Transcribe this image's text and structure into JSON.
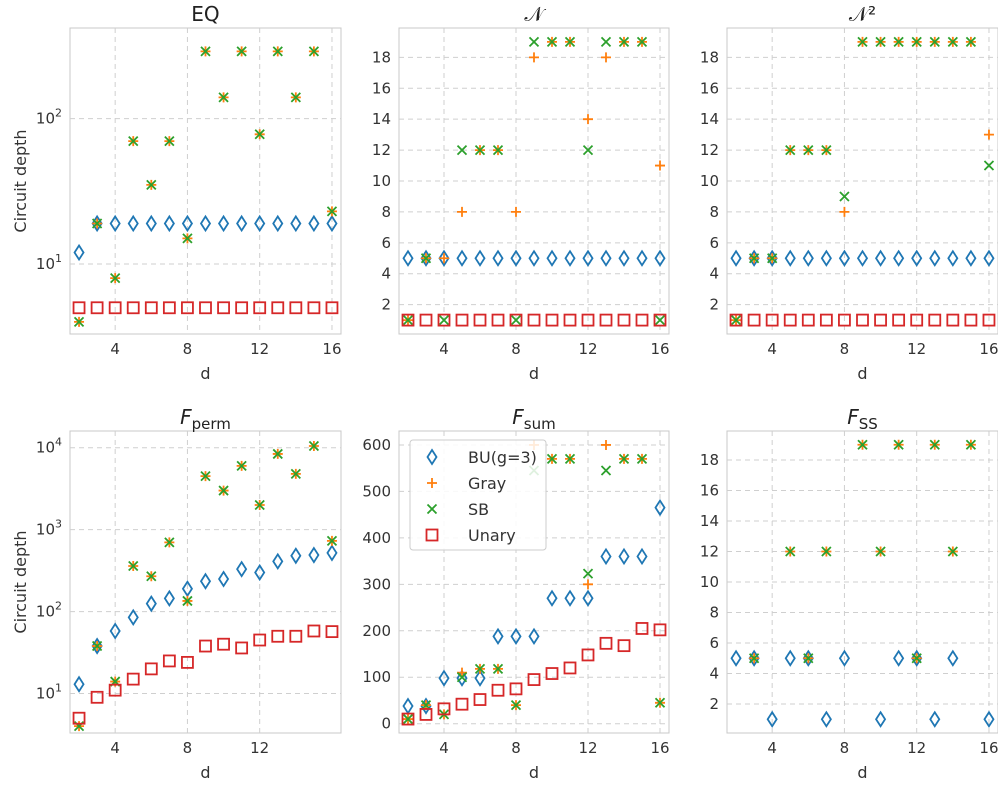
{
  "chart_data": [
    {
      "type": "scatter",
      "title": "EQ",
      "xlabel": "d",
      "ylabel": "Circuit depth",
      "yscale": "log",
      "xlim": [
        1.5,
        16.5
      ],
      "ylim": [
        3.3,
        420
      ],
      "xticks": [
        4,
        8,
        12,
        16
      ],
      "yticks": [
        10,
        100
      ],
      "ytick_labels": [
        "10^1",
        "10^2"
      ],
      "x": [
        2,
        3,
        4,
        5,
        6,
        7,
        8,
        9,
        10,
        11,
        12,
        13,
        14,
        15,
        16
      ],
      "series": [
        {
          "name": "BU(g=3)",
          "values": [
            12,
            19,
            19,
            19,
            19,
            19,
            19,
            19,
            19,
            19,
            19,
            19,
            19,
            19,
            19
          ]
        },
        {
          "name": "Gray",
          "values": [
            4,
            19,
            8,
            70,
            35,
            70,
            15,
            290,
            140,
            290,
            78,
            290,
            140,
            290,
            23
          ]
        },
        {
          "name": "SB",
          "values": [
            4,
            19,
            8,
            70,
            35,
            70,
            15,
            290,
            140,
            290,
            78,
            290,
            140,
            290,
            23
          ]
        },
        {
          "name": "Unary",
          "values": [
            5,
            5,
            5,
            5,
            5,
            5,
            5,
            5,
            5,
            5,
            5,
            5,
            5,
            5,
            5
          ]
        }
      ]
    },
    {
      "type": "scatter",
      "title": "𝒩",
      "xlabel": "d",
      "ylabel": "",
      "yscale": "linear",
      "xlim": [
        1.5,
        16.5
      ],
      "ylim": [
        0.1,
        19.9
      ],
      "xticks": [
        4,
        8,
        12,
        16
      ],
      "yticks": [
        2,
        4,
        6,
        8,
        10,
        12,
        14,
        16,
        18
      ],
      "x": [
        2,
        3,
        4,
        5,
        6,
        7,
        8,
        9,
        10,
        11,
        12,
        13,
        14,
        15,
        16
      ],
      "series": [
        {
          "name": "BU(g=3)",
          "values": [
            5,
            5,
            5,
            5,
            5,
            5,
            5,
            5,
            5,
            5,
            5,
            5,
            5,
            5,
            5
          ]
        },
        {
          "name": "Gray",
          "values": [
            1,
            5,
            5,
            8,
            12,
            12,
            8,
            18,
            19,
            19,
            14,
            18,
            19,
            19,
            11
          ]
        },
        {
          "name": "SB",
          "values": [
            1,
            5,
            1,
            12,
            12,
            12,
            1,
            19,
            19,
            19,
            12,
            19,
            19,
            19,
            1
          ]
        },
        {
          "name": "Unary",
          "values": [
            1,
            1,
            1,
            1,
            1,
            1,
            1,
            1,
            1,
            1,
            1,
            1,
            1,
            1,
            1
          ]
        }
      ]
    },
    {
      "type": "scatter",
      "title": "𝒩²",
      "xlabel": "d",
      "ylabel": "",
      "yscale": "linear",
      "xlim": [
        1.5,
        16.5
      ],
      "ylim": [
        0.1,
        19.9
      ],
      "xticks": [
        4,
        8,
        12,
        16
      ],
      "yticks": [
        2,
        4,
        6,
        8,
        10,
        12,
        14,
        16,
        18
      ],
      "x": [
        2,
        3,
        4,
        5,
        6,
        7,
        8,
        9,
        10,
        11,
        12,
        13,
        14,
        15,
        16
      ],
      "series": [
        {
          "name": "BU(g=3)",
          "values": [
            5,
            5,
            5,
            5,
            5,
            5,
            5,
            5,
            5,
            5,
            5,
            5,
            5,
            5,
            5
          ]
        },
        {
          "name": "Gray",
          "values": [
            1,
            5,
            5,
            12,
            12,
            12,
            8,
            19,
            19,
            19,
            19,
            19,
            19,
            19,
            13
          ]
        },
        {
          "name": "SB",
          "values": [
            1,
            5,
            5,
            12,
            12,
            12,
            9,
            19,
            19,
            19,
            19,
            19,
            19,
            19,
            11
          ]
        },
        {
          "name": "Unary",
          "values": [
            1,
            1,
            1,
            1,
            1,
            1,
            1,
            1,
            1,
            1,
            1,
            1,
            1,
            1,
            1
          ]
        }
      ]
    },
    {
      "type": "scatter",
      "title": "F_perm",
      "title_main": "F",
      "title_sub": "perm",
      "xlabel": "d",
      "ylabel": "Circuit depth",
      "yscale": "log",
      "xlim": [
        1.5,
        16.5
      ],
      "ylim": [
        3.3,
        16000
      ],
      "xticks": [
        4,
        8,
        12
      ],
      "yticks": [
        10,
        100,
        1000,
        10000
      ],
      "ytick_labels": [
        "10^1",
        "10^2",
        "10^3",
        "10^4"
      ],
      "x": [
        2,
        3,
        4,
        5,
        6,
        7,
        8,
        9,
        10,
        11,
        12,
        13,
        14,
        15,
        16
      ],
      "series": [
        {
          "name": "BU(g=3)",
          "values": [
            13,
            38,
            58,
            85,
            125,
            145,
            190,
            235,
            250,
            330,
            300,
            410,
            480,
            490,
            520
          ]
        },
        {
          "name": "Gray",
          "values": [
            4,
            38,
            14,
            360,
            270,
            700,
            135,
            4500,
            3000,
            6000,
            2000,
            8400,
            4800,
            10500,
            730
          ]
        },
        {
          "name": "SB",
          "values": [
            4,
            38,
            14,
            360,
            270,
            700,
            135,
            4500,
            3000,
            6000,
            2000,
            8400,
            4800,
            10500,
            730
          ]
        },
        {
          "name": "Unary",
          "values": [
            5,
            9,
            11,
            15,
            20,
            25,
            24,
            38,
            40,
            36,
            45,
            50,
            50,
            58,
            57
          ]
        }
      ]
    },
    {
      "type": "scatter",
      "title": "F_sum",
      "title_main": "F",
      "title_sub": "sum",
      "xlabel": "d",
      "ylabel": "",
      "yscale": "linear",
      "xlim": [
        1.5,
        16.5
      ],
      "ylim": [
        -20,
        630
      ],
      "xticks": [
        4,
        8,
        12,
        16
      ],
      "yticks": [
        0,
        100,
        200,
        300,
        400,
        500,
        600
      ],
      "x": [
        2,
        3,
        4,
        5,
        6,
        7,
        8,
        9,
        10,
        11,
        12,
        13,
        14,
        15,
        16
      ],
      "series": [
        {
          "name": "BU(g=3)",
          "values": [
            38,
            38,
            98,
            98,
            98,
            188,
            188,
            188,
            270,
            270,
            270,
            360,
            360,
            360,
            465
          ]
        },
        {
          "name": "Gray",
          "values": [
            10,
            40,
            20,
            110,
            118,
            118,
            40,
            600,
            570,
            570,
            300,
            600,
            570,
            570,
            45
          ]
        },
        {
          "name": "SB",
          "values": [
            10,
            40,
            20,
            100,
            118,
            118,
            40,
            545,
            570,
            570,
            323,
            545,
            570,
            570,
            45
          ]
        },
        {
          "name": "Unary",
          "values": [
            10,
            20,
            32,
            42,
            52,
            72,
            75,
            95,
            108,
            120,
            148,
            173,
            168,
            205,
            202
          ]
        }
      ]
    },
    {
      "type": "scatter",
      "title": "F_SS",
      "title_main": "F",
      "title_sub": "SS",
      "xlabel": "d",
      "ylabel": "",
      "yscale": "linear",
      "xlim": [
        1.5,
        16.5
      ],
      "ylim": [
        0.1,
        19.9
      ],
      "xticks": [
        4,
        8,
        12,
        16
      ],
      "yticks": [
        2,
        4,
        6,
        8,
        10,
        12,
        14,
        16,
        18
      ],
      "x": [
        2,
        3,
        4,
        5,
        6,
        7,
        8,
        9,
        10,
        11,
        12,
        13,
        14,
        15,
        16
      ],
      "series": [
        {
          "name": "BU(g=3)",
          "values": [
            5,
            5,
            1,
            5,
            5,
            1,
            5,
            null,
            1,
            5,
            5,
            1,
            5,
            null,
            1
          ]
        },
        {
          "name": "Gray",
          "values": [
            null,
            5,
            null,
            12,
            5,
            12,
            null,
            19,
            12,
            19,
            5,
            19,
            12,
            19,
            null
          ]
        },
        {
          "name": "SB",
          "values": [
            null,
            5,
            null,
            12,
            5,
            12,
            null,
            19,
            12,
            19,
            5,
            19,
            12,
            19,
            null
          ]
        }
      ]
    }
  ],
  "legend": {
    "placement": "upper-left of F_sum panel",
    "entries": [
      {
        "label": "BU(g=3)",
        "marker": "diamond",
        "color": "#1f77b4"
      },
      {
        "label": "Gray",
        "marker": "plus",
        "color": "#ff7f0e"
      },
      {
        "label": "SB",
        "marker": "x",
        "color": "#2ca02c"
      },
      {
        "label": "Unary",
        "marker": "square",
        "color": "#d62728"
      }
    ]
  },
  "style": {
    "colors": {
      "BU(g=3)": "#1f77b4",
      "Gray": "#ff7f0e",
      "SB": "#2ca02c",
      "Unary": "#d62728"
    },
    "grid": true
  }
}
